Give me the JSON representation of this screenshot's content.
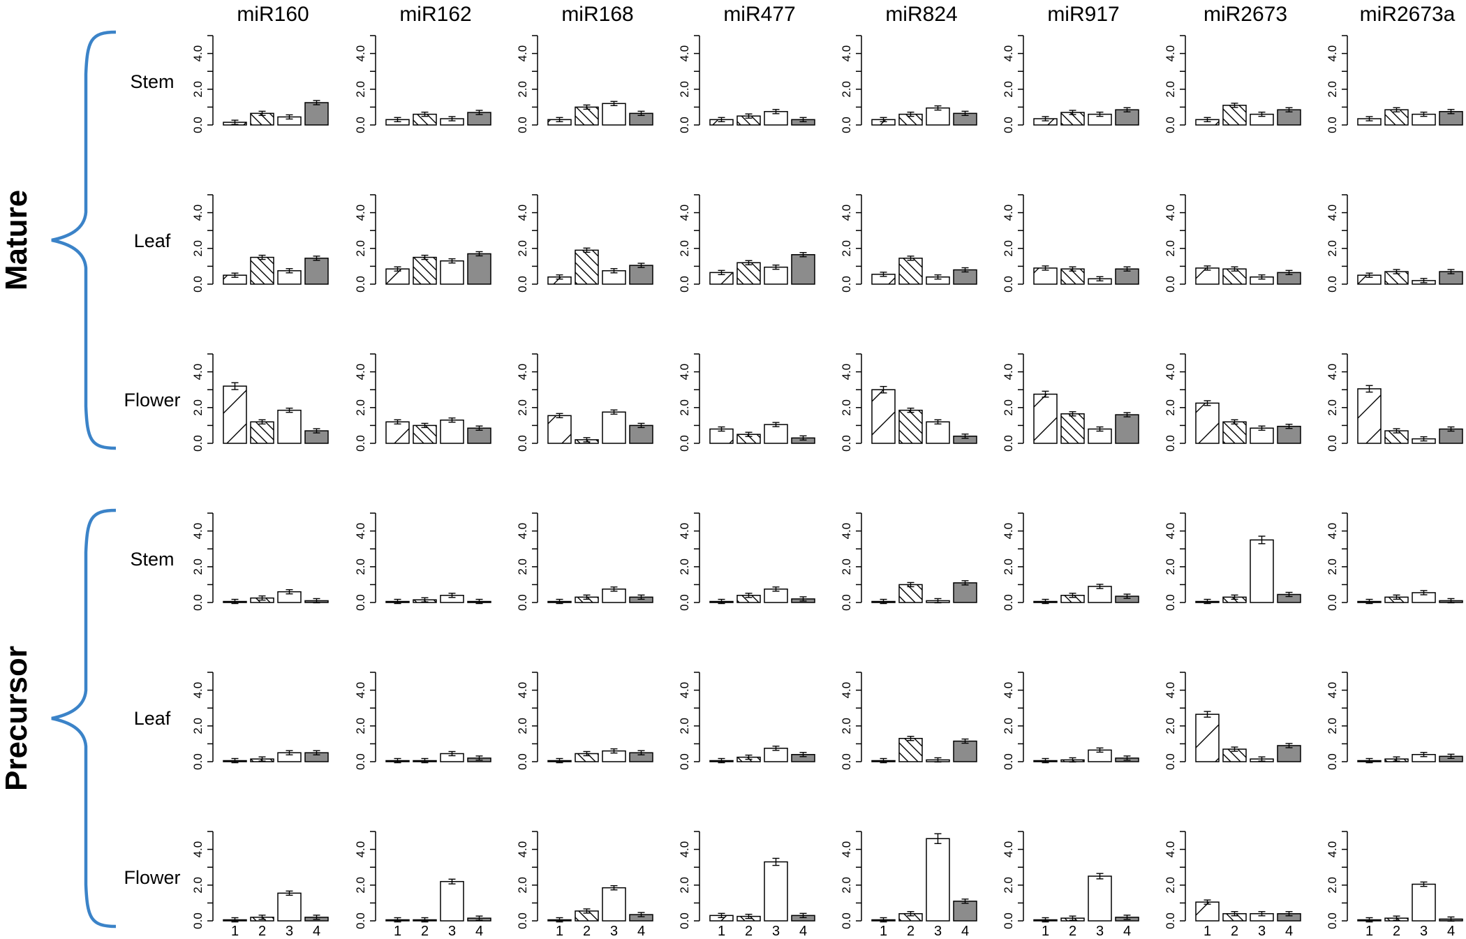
{
  "chart_data": {
    "type": "bar",
    "title": "",
    "xlabel": "",
    "ylabel": "",
    "ylim": [
      0,
      5
    ],
    "y_ticks": [
      "0.0",
      "2.0",
      "4.0"
    ],
    "categories": [
      "1",
      "2",
      "3",
      "4"
    ],
    "columns": [
      "miR160",
      "miR162",
      "miR168",
      "miR477",
      "miR824",
      "miR917",
      "miR2673",
      "miR2673a"
    ],
    "groups": [
      {
        "name": "Mature",
        "rows": [
          {
            "tissue": "Stem",
            "values": [
              [
                0.15,
                0.65,
                0.45,
                1.25
              ],
              [
                0.3,
                0.6,
                0.35,
                0.7
              ],
              [
                0.3,
                1.0,
                1.2,
                0.65
              ],
              [
                0.3,
                0.5,
                0.75,
                0.3
              ],
              [
                0.3,
                0.6,
                0.95,
                0.65
              ],
              [
                0.35,
                0.7,
                0.6,
                0.85
              ],
              [
                0.3,
                1.1,
                0.6,
                0.85
              ],
              [
                0.35,
                0.85,
                0.6,
                0.75
              ]
            ]
          },
          {
            "tissue": "Leaf",
            "values": [
              [
                0.5,
                1.5,
                0.75,
                1.45
              ],
              [
                0.85,
                1.5,
                1.3,
                1.7
              ],
              [
                0.4,
                1.9,
                0.75,
                1.05
              ],
              [
                0.65,
                1.2,
                0.95,
                1.65
              ],
              [
                0.55,
                1.45,
                0.4,
                0.8
              ],
              [
                0.9,
                0.85,
                0.3,
                0.85
              ],
              [
                0.9,
                0.85,
                0.4,
                0.65
              ],
              [
                0.5,
                0.7,
                0.2,
                0.7
              ]
            ]
          },
          {
            "tissue": "Flower",
            "values": [
              [
                3.2,
                1.2,
                1.85,
                0.7
              ],
              [
                1.2,
                1.0,
                1.3,
                0.85
              ],
              [
                1.55,
                0.2,
                1.75,
                1.0
              ],
              [
                0.8,
                0.5,
                1.05,
                0.3
              ],
              [
                3.0,
                1.85,
                1.2,
                0.4
              ],
              [
                2.75,
                1.65,
                0.8,
                1.6
              ],
              [
                2.25,
                1.2,
                0.85,
                0.95
              ],
              [
                3.05,
                0.7,
                0.25,
                0.8
              ]
            ]
          }
        ]
      },
      {
        "name": "Precursor",
        "rows": [
          {
            "tissue": "Stem",
            "values": [
              [
                0.05,
                0.25,
                0.6,
                0.1
              ],
              [
                0.05,
                0.15,
                0.4,
                0.05
              ],
              [
                0.05,
                0.3,
                0.75,
                0.3
              ],
              [
                0.05,
                0.4,
                0.75,
                0.2
              ],
              [
                0.05,
                1.0,
                0.1,
                1.1
              ],
              [
                0.05,
                0.4,
                0.9,
                0.35
              ],
              [
                0.05,
                0.3,
                3.5,
                0.45
              ],
              [
                0.05,
                0.3,
                0.55,
                0.1
              ]
            ]
          },
          {
            "tissue": "Leaf",
            "values": [
              [
                0.05,
                0.15,
                0.5,
                0.5
              ],
              [
                0.05,
                0.05,
                0.45,
                0.2
              ],
              [
                0.05,
                0.45,
                0.6,
                0.5
              ],
              [
                0.05,
                0.25,
                0.75,
                0.4
              ],
              [
                0.05,
                1.3,
                0.1,
                1.15
              ],
              [
                0.05,
                0.1,
                0.65,
                0.2
              ],
              [
                2.65,
                0.7,
                0.15,
                0.9
              ],
              [
                0.05,
                0.15,
                0.4,
                0.3
              ]
            ]
          },
          {
            "tissue": "Flower",
            "values": [
              [
                0.05,
                0.2,
                1.55,
                0.2
              ],
              [
                0.05,
                0.05,
                2.2,
                0.15
              ],
              [
                0.05,
                0.55,
                1.85,
                0.35
              ],
              [
                0.3,
                0.25,
                3.3,
                0.3
              ],
              [
                0.05,
                0.4,
                4.6,
                1.1
              ],
              [
                0.05,
                0.15,
                2.5,
                0.2
              ],
              [
                1.05,
                0.4,
                0.4,
                0.4
              ],
              [
                0.05,
                0.15,
                2.05,
                0.1
              ]
            ]
          }
        ]
      }
    ],
    "bar_styles": [
      "hatch-forward",
      "hatch-back",
      "white",
      "gray"
    ],
    "colors": {
      "bracket": "#3b83c8",
      "gray_bar": "#8c8c8c",
      "ink": "#000000"
    }
  }
}
